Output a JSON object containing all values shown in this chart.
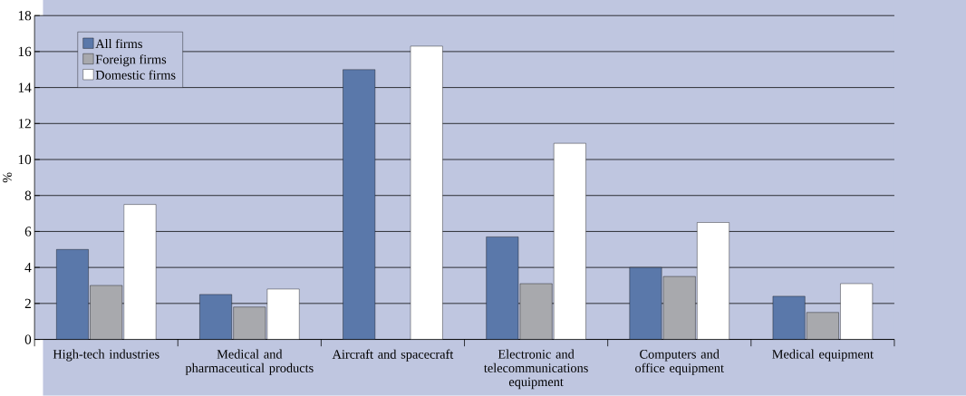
{
  "chart_data": {
    "type": "bar",
    "ylabel": "%",
    "categories": [
      "High-tech industries",
      "Medical and pharmaceutical products",
      "Aircraft and spacecraft",
      "Electronic and telecommunications equipment",
      "Computers and office equipment",
      "Medical equipment"
    ],
    "series": [
      {
        "name": "All firms",
        "color": "#5a78aa",
        "values": [
          5.0,
          2.5,
          15.0,
          5.7,
          4.0,
          2.4
        ]
      },
      {
        "name": "Foreign firms",
        "color": "#a8a9ad",
        "values": [
          3.0,
          1.8,
          null,
          3.1,
          3.5,
          1.5
        ]
      },
      {
        "name": "Domestic firms",
        "color": "#ffffff",
        "values": [
          7.5,
          2.8,
          16.3,
          10.9,
          6.5,
          3.1
        ]
      }
    ],
    "ylim": [
      0,
      18
    ],
    "yticks": [
      0,
      2,
      4,
      6,
      8,
      10,
      12,
      14,
      16,
      18
    ],
    "grid": "y",
    "legend": "top left"
  }
}
